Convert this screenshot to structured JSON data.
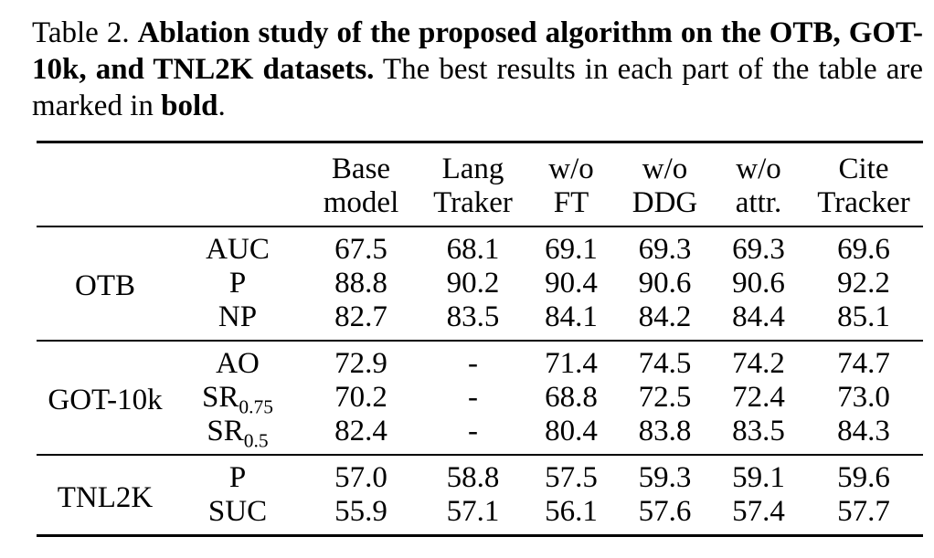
{
  "colors": {
    "text": "#000000",
    "background": "#ffffff",
    "rule": "#000000"
  },
  "caption": {
    "label": "Table 2.",
    "title_bold": "Ablation study of the proposed algorithm on the OTB, GOT-10k, and TNL2K datasets.",
    "note": "The best results in each part of the table are marked in",
    "bold_word": "bold",
    "period": "."
  },
  "table": {
    "columns": [
      {
        "id": "base-model",
        "line1": "Base",
        "line2": "model"
      },
      {
        "id": "lang-traker",
        "line1": "Lang",
        "line2": "Traker"
      },
      {
        "id": "wo-ft",
        "line1": "w/o",
        "line2": "FT"
      },
      {
        "id": "wo-ddg",
        "line1": "w/o",
        "line2": "DDG"
      },
      {
        "id": "wo-attr",
        "line1": "w/o",
        "line2": "attr."
      },
      {
        "id": "cite-tracker",
        "line1": "Cite",
        "line2": "Tracker"
      }
    ],
    "sections": [
      {
        "dataset": "OTB",
        "rows": [
          {
            "metric": "AUC",
            "metric_sub": "",
            "values": [
              "67.5",
              "68.1",
              "69.1",
              "69.3",
              "69.3",
              "69.6"
            ]
          },
          {
            "metric": "P",
            "metric_sub": "",
            "values": [
              "88.8",
              "90.2",
              "90.4",
              "90.6",
              "90.6",
              "92.2"
            ]
          },
          {
            "metric": "NP",
            "metric_sub": "",
            "values": [
              "82.7",
              "83.5",
              "84.1",
              "84.2",
              "84.4",
              "85.1"
            ]
          }
        ]
      },
      {
        "dataset": "GOT-10k",
        "rows": [
          {
            "metric": "AO",
            "metric_sub": "",
            "values": [
              "72.9",
              "-",
              "71.4",
              "74.5",
              "74.2",
              "74.7"
            ]
          },
          {
            "metric": "SR",
            "metric_sub": "0.75",
            "values": [
              "70.2",
              "-",
              "68.8",
              "72.5",
              "72.4",
              "73.0"
            ]
          },
          {
            "metric": "SR",
            "metric_sub": "0.5",
            "values": [
              "82.4",
              "-",
              "80.4",
              "83.8",
              "83.5",
              "84.3"
            ]
          }
        ]
      },
      {
        "dataset": "TNL2K",
        "rows": [
          {
            "metric": "P",
            "metric_sub": "",
            "values": [
              "57.0",
              "58.8",
              "57.5",
              "59.3",
              "59.1",
              "59.6"
            ]
          },
          {
            "metric": "SUC",
            "metric_sub": "",
            "values": [
              "55.9",
              "57.1",
              "56.1",
              "57.6",
              "57.4",
              "57.7"
            ]
          }
        ]
      }
    ]
  }
}
